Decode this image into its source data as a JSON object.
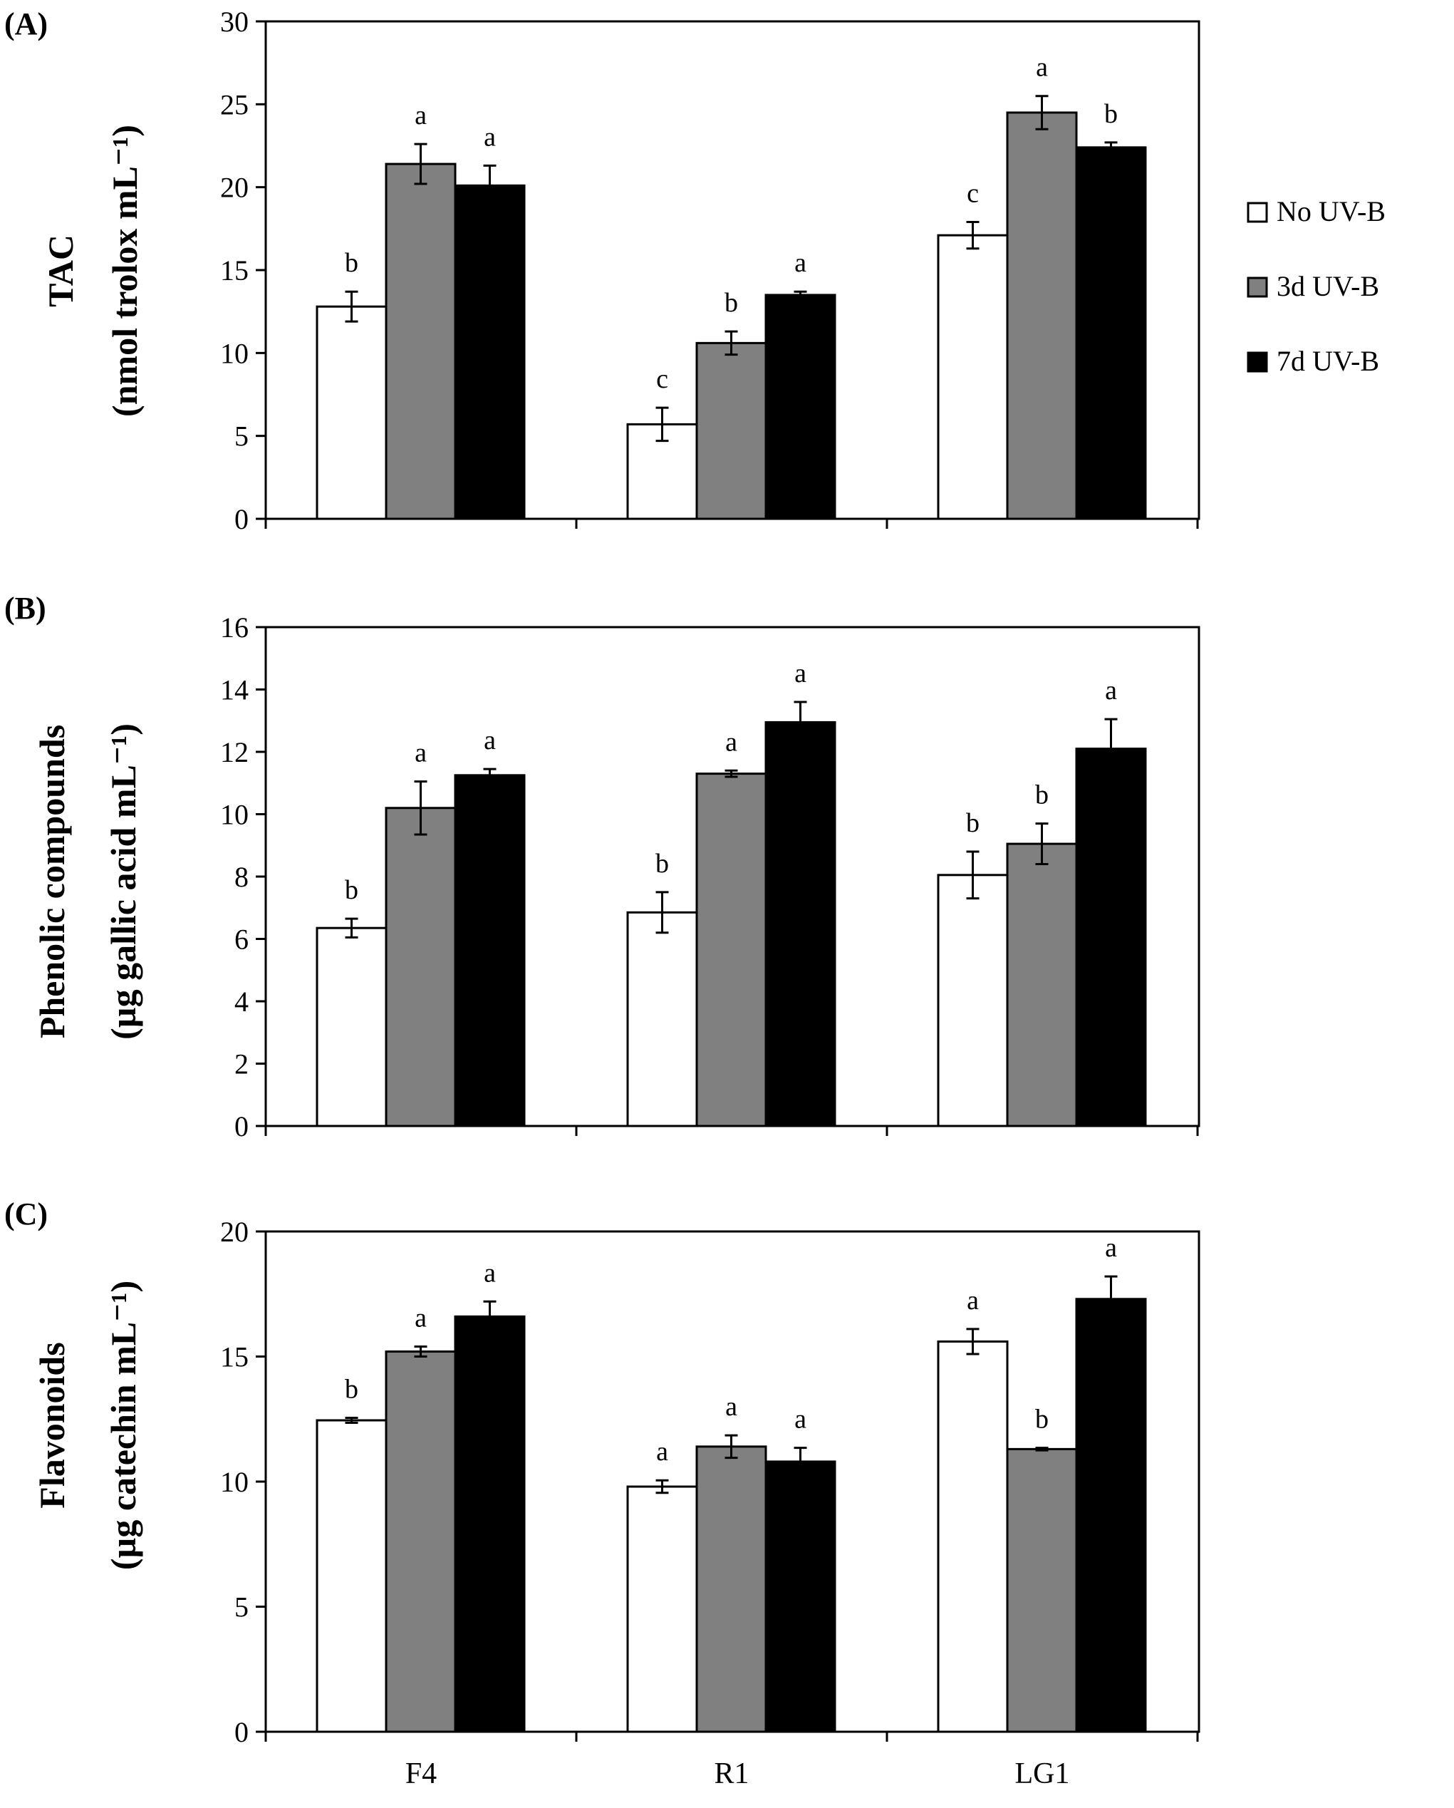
{
  "chart_data": [
    {
      "type": "bar",
      "panel_label": "(A)",
      "ylabel_line1": "TAC",
      "ylabel_line2": "(nmol trolox mL⁻¹)",
      "categories": [
        "F4",
        "R1",
        "LG1"
      ],
      "ylim": [
        0,
        30
      ],
      "yticks": [
        0,
        5,
        10,
        15,
        20,
        25,
        30
      ],
      "show_category_labels": false,
      "series": [
        {
          "name": "No UV-B",
          "values": [
            12.8,
            5.7,
            17.1
          ],
          "errors": [
            0.9,
            1.0,
            0.8
          ],
          "letters": [
            "b",
            "c",
            "c"
          ]
        },
        {
          "name": "3d UV-B",
          "values": [
            21.4,
            10.6,
            24.5
          ],
          "errors": [
            1.2,
            0.7,
            1.0
          ],
          "letters": [
            "a",
            "b",
            "a"
          ]
        },
        {
          "name": "7d UV-B",
          "values": [
            20.1,
            13.5,
            22.4
          ],
          "errors": [
            1.2,
            0.2,
            0.3
          ],
          "letters": [
            "a",
            "a",
            "b"
          ]
        }
      ]
    },
    {
      "type": "bar",
      "panel_label": "(B)",
      "ylabel_line1": "Phenolic compounds",
      "ylabel_line2": "(µg gallic acid mL⁻¹)",
      "categories": [
        "F4",
        "R1",
        "LG1"
      ],
      "ylim": [
        0,
        16
      ],
      "yticks": [
        0,
        2,
        4,
        6,
        8,
        10,
        12,
        14,
        16
      ],
      "show_category_labels": false,
      "series": [
        {
          "name": "No UV-B",
          "values": [
            6.35,
            6.85,
            8.05
          ],
          "errors": [
            0.3,
            0.65,
            0.75
          ],
          "letters": [
            "b",
            "b",
            "b"
          ]
        },
        {
          "name": "3d UV-B",
          "values": [
            10.2,
            11.3,
            9.05
          ],
          "errors": [
            0.85,
            0.1,
            0.65
          ],
          "letters": [
            "a",
            "a",
            "b"
          ]
        },
        {
          "name": "7d UV-B",
          "values": [
            11.25,
            12.95,
            12.1
          ],
          "errors": [
            0.2,
            0.65,
            0.95
          ],
          "letters": [
            "a",
            "a",
            "a"
          ]
        }
      ]
    },
    {
      "type": "bar",
      "panel_label": "(C)",
      "ylabel_line1": "Flavonoids",
      "ylabel_line2": "(µg catechin mL⁻¹)",
      "categories": [
        "F4",
        "R1",
        "LG1"
      ],
      "ylim": [
        0,
        20
      ],
      "yticks": [
        0,
        5,
        10,
        15,
        20
      ],
      "show_category_labels": true,
      "series": [
        {
          "name": "No UV-B",
          "values": [
            12.45,
            9.8,
            15.6
          ],
          "errors": [
            0.1,
            0.25,
            0.5
          ],
          "letters": [
            "b",
            "a",
            "a"
          ]
        },
        {
          "name": "3d UV-B",
          "values": [
            15.2,
            11.4,
            11.3
          ],
          "errors": [
            0.2,
            0.45,
            0.05
          ],
          "letters": [
            "a",
            "a",
            "b"
          ]
        },
        {
          "name": "7d UV-B",
          "values": [
            16.6,
            10.8,
            17.3
          ],
          "errors": [
            0.6,
            0.55,
            0.9
          ],
          "letters": [
            "a",
            "a",
            "a"
          ]
        }
      ]
    }
  ],
  "legend": {
    "entries": [
      {
        "label": "No UV-B",
        "color": "#ffffff"
      },
      {
        "label": "3d UV-B",
        "color": "#808080"
      },
      {
        "label": "7d UV-B",
        "color": "#000000"
      }
    ]
  },
  "colors": {
    "no_uvb": "#ffffff",
    "uvb_3d": "#808080",
    "uvb_7d": "#000000",
    "axis": "#000000"
  }
}
